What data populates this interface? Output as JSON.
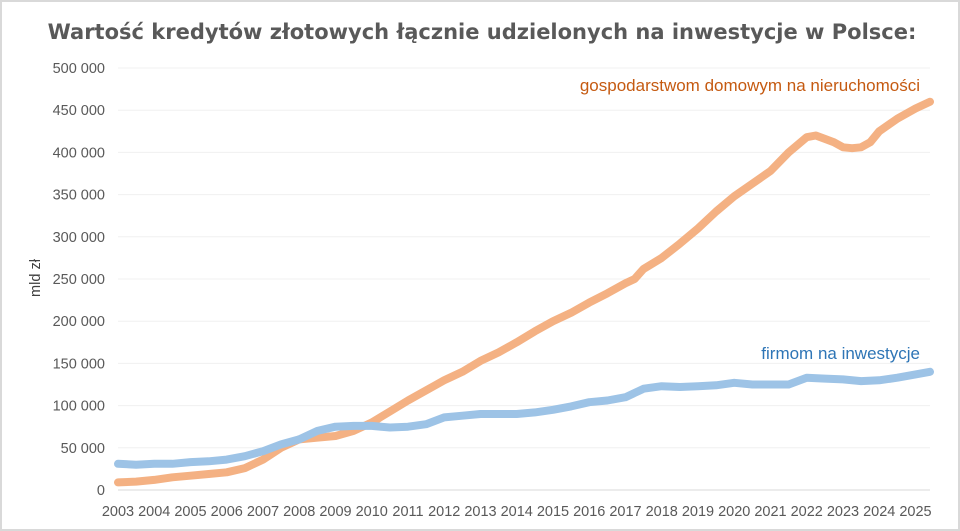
{
  "chart_data": {
    "type": "line",
    "title": "Wartość kredytów złotowych łącznie udzielonych na inwestycje w Polsce:",
    "xlabel": "",
    "ylabel": "mld zł",
    "xlim": [
      2003,
      2025.4
    ],
    "ylim": [
      0,
      500000
    ],
    "y_ticks": [
      0,
      50000,
      100000,
      150000,
      200000,
      250000,
      300000,
      350000,
      400000,
      450000,
      500000
    ],
    "y_tick_labels": [
      "0",
      "50 000",
      "100 000",
      "150 000",
      "200 000",
      "250 000",
      "300 000",
      "350 000",
      "400 000",
      "450 000",
      "500 000"
    ],
    "x_ticks": [
      2003,
      2004,
      2005,
      2006,
      2007,
      2008,
      2009,
      2010,
      2011,
      2012,
      2013,
      2014,
      2015,
      2016,
      2017,
      2018,
      2019,
      2020,
      2021,
      2022,
      2023,
      2024,
      2025
    ],
    "x_tick_labels": [
      "2003",
      "2004",
      "2005",
      "2006",
      "2007",
      "2008",
      "2009",
      "2010",
      "2011",
      "2012",
      "2013",
      "2014",
      "2015",
      "2016",
      "2017",
      "2018",
      "2019",
      "2020",
      "2021",
      "2022",
      "2023",
      "2024",
      "2025"
    ],
    "grid": true,
    "legend": "inline labels",
    "series": [
      {
        "name": "gospodarstwom domowym na nieruchomości",
        "color": "#f4b183",
        "x": [
          2003,
          2003.5,
          2004,
          2004.5,
          2005,
          2005.5,
          2006,
          2006.5,
          2007,
          2007.5,
          2008,
          2008.5,
          2009,
          2009.5,
          2010,
          2010.5,
          2011,
          2011.5,
          2012,
          2012.5,
          2013,
          2013.5,
          2014,
          2014.5,
          2015,
          2015.5,
          2016,
          2016.5,
          2017,
          2017.25,
          2017.5,
          2018,
          2018.5,
          2019,
          2019.5,
          2020,
          2020.5,
          2021,
          2021.5,
          2022,
          2022.25,
          2022.5,
          2022.75,
          2023,
          2023.25,
          2023.5,
          2023.75,
          2024,
          2024.5,
          2025,
          2025.4
        ],
        "values": [
          9000,
          10000,
          12000,
          15000,
          17000,
          19000,
          21000,
          26000,
          36000,
          50000,
          60000,
          62000,
          64000,
          70000,
          80000,
          93000,
          106000,
          118000,
          130000,
          140000,
          153000,
          163000,
          175000,
          188000,
          200000,
          210000,
          222000,
          233000,
          245000,
          250000,
          262000,
          275000,
          292000,
          310000,
          330000,
          348000,
          363000,
          378000,
          400000,
          418000,
          420000,
          416000,
          412000,
          406000,
          405000,
          406000,
          412000,
          425000,
          440000,
          452000,
          460000
        ]
      },
      {
        "name": "firmom na inwestycje",
        "color": "#9dc3e6",
        "x": [
          2003,
          2003.5,
          2004,
          2004.5,
          2005,
          2005.5,
          2006,
          2006.5,
          2007,
          2007.5,
          2008,
          2008.5,
          2009,
          2009.5,
          2010,
          2010.5,
          2011,
          2011.5,
          2012,
          2012.5,
          2013,
          2013.5,
          2014,
          2014.5,
          2015,
          2015.5,
          2016,
          2016.5,
          2017,
          2017.5,
          2018,
          2018.5,
          2019,
          2019.5,
          2020,
          2020.5,
          2021,
          2021.5,
          2022,
          2022.5,
          2023,
          2023.5,
          2024,
          2024.5,
          2025,
          2025.4
        ],
        "values": [
          31000,
          30000,
          31000,
          31000,
          33000,
          34000,
          36000,
          40000,
          46000,
          54000,
          60000,
          70000,
          75000,
          76000,
          76000,
          74000,
          75000,
          78000,
          86000,
          88000,
          90000,
          90000,
          90000,
          92000,
          95000,
          99000,
          104000,
          106000,
          110000,
          120000,
          123000,
          122000,
          123000,
          124000,
          127000,
          125000,
          125000,
          125000,
          133000,
          132000,
          131000,
          129000,
          130000,
          133000,
          137000,
          140000
        ]
      }
    ]
  }
}
